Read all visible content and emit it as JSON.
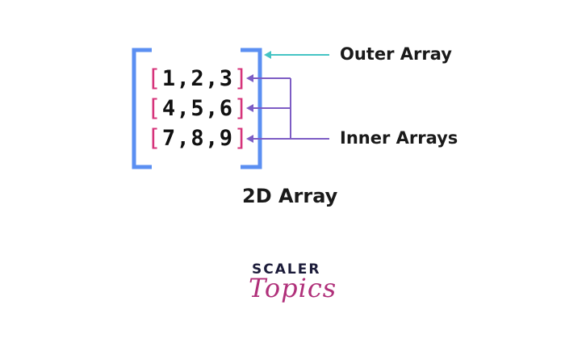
{
  "colors": {
    "outer_bracket": "#5b8ff2",
    "inner_bracket": "#d6337a",
    "outer_arrow": "#45c4c4",
    "inner_arrow": "#7d5cc4",
    "text": "#111111",
    "logo_topics": "#b0307a"
  },
  "rows": [
    {
      "open": "[",
      "values": [
        "1",
        ",",
        "2",
        ",",
        "3"
      ],
      "close": "]"
    },
    {
      "open": "[",
      "values": [
        "4",
        ",",
        "5",
        ",",
        "6"
      ],
      "close": "]"
    },
    {
      "open": "[",
      "values": [
        "7",
        ",",
        "8",
        ",",
        "9"
      ],
      "close": "]"
    }
  ],
  "labels": {
    "outer": "Outer Array",
    "inner": "Inner Arrays",
    "title": "2D Array"
  },
  "logo": {
    "line1": "SCALER",
    "line2": "Topics"
  }
}
